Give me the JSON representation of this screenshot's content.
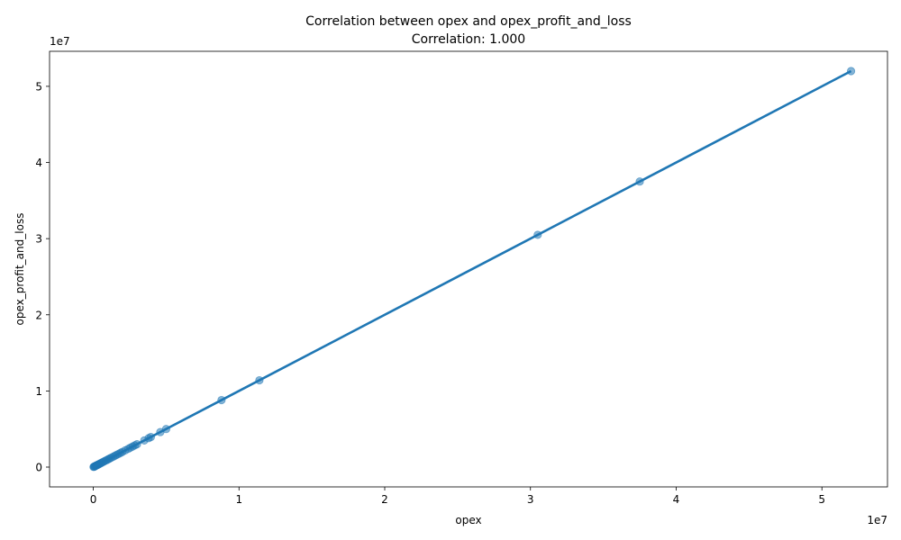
{
  "chart_data": {
    "type": "scatter",
    "title": "Correlation between opex and opex_profit_and_loss",
    "subtitle": "Correlation: 1.000",
    "xlabel": "opex",
    "ylabel": "opex_profit_and_loss",
    "x_offset_label": "1e7",
    "y_offset_label": "1e7",
    "xlim": [
      -3.0,
      54.5
    ],
    "ylim": [
      -2.6,
      54.6
    ],
    "x_ticks": [
      0,
      1,
      2,
      3,
      4,
      5
    ],
    "x_tick_labels": [
      "0",
      "1",
      "2",
      "3",
      "4",
      "5"
    ],
    "y_ticks": [
      0,
      1,
      2,
      3,
      4,
      5
    ],
    "y_tick_labels": [
      "0",
      "1",
      "2",
      "3",
      "4",
      "5"
    ],
    "tick_scale": 10,
    "value_unit": "millions",
    "grid": false,
    "color": "#1f77b4",
    "series": [
      {
        "points": [
          {
            "x": 0.02,
            "y": 0.02
          },
          {
            "x": 0.05,
            "y": 0.05
          },
          {
            "x": 0.08,
            "y": 0.08
          },
          {
            "x": 0.12,
            "y": 0.12
          },
          {
            "x": 0.16,
            "y": 0.16
          },
          {
            "x": 0.2,
            "y": 0.2
          },
          {
            "x": 0.25,
            "y": 0.25
          },
          {
            "x": 0.3,
            "y": 0.3
          },
          {
            "x": 0.36,
            "y": 0.36
          },
          {
            "x": 0.42,
            "y": 0.42
          },
          {
            "x": 0.5,
            "y": 0.5
          },
          {
            "x": 0.58,
            "y": 0.58
          },
          {
            "x": 0.66,
            "y": 0.66
          },
          {
            "x": 0.75,
            "y": 0.75
          },
          {
            "x": 0.85,
            "y": 0.85
          },
          {
            "x": 0.95,
            "y": 0.95
          },
          {
            "x": 1.05,
            "y": 1.05
          },
          {
            "x": 1.15,
            "y": 1.15
          },
          {
            "x": 1.25,
            "y": 1.25
          },
          {
            "x": 1.38,
            "y": 1.38
          },
          {
            "x": 1.5,
            "y": 1.5
          },
          {
            "x": 1.62,
            "y": 1.62
          },
          {
            "x": 1.75,
            "y": 1.75
          },
          {
            "x": 1.88,
            "y": 1.88
          },
          {
            "x": 2.0,
            "y": 2.0
          },
          {
            "x": 2.2,
            "y": 2.2
          },
          {
            "x": 2.4,
            "y": 2.4
          },
          {
            "x": 2.55,
            "y": 2.55
          },
          {
            "x": 2.7,
            "y": 2.7
          },
          {
            "x": 2.85,
            "y": 2.85
          },
          {
            "x": 3.0,
            "y": 3.0
          },
          {
            "x": 3.5,
            "y": 3.5
          },
          {
            "x": 3.8,
            "y": 3.8
          },
          {
            "x": 3.95,
            "y": 3.95
          },
          {
            "x": 4.6,
            "y": 4.6
          },
          {
            "x": 5.0,
            "y": 5.0
          },
          {
            "x": 8.8,
            "y": 8.8
          },
          {
            "x": 11.4,
            "y": 11.4
          },
          {
            "x": 30.5,
            "y": 30.5
          },
          {
            "x": 37.5,
            "y": 37.5
          },
          {
            "x": 52.0,
            "y": 52.0
          }
        ]
      }
    ],
    "fit_line": {
      "x": [
        0,
        52.0
      ],
      "y": [
        0,
        52.0
      ]
    }
  }
}
